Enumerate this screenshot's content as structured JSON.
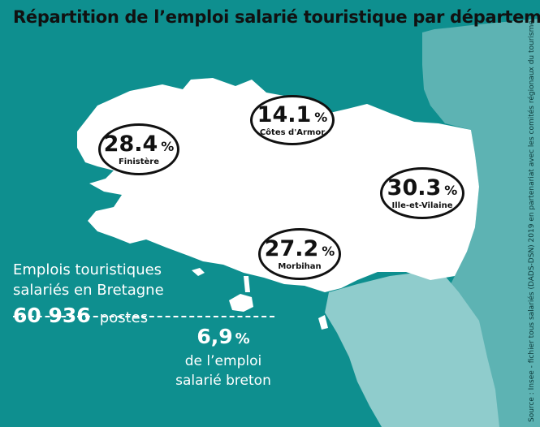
{
  "title": "Répartition de l’emploi salarié touristique par département",
  "colors": {
    "sea": "#0e8f8f",
    "neighbor_land": "#5db3b3",
    "neighbor_land_light": "#8fcccc",
    "bretagne": "#ffffff",
    "label_border": "#111111"
  },
  "regions": [
    {
      "name": "Finistère",
      "value": "28.4",
      "unit": "%"
    },
    {
      "name": "Côtes d'Armor",
      "value": "14.1",
      "unit": "%"
    },
    {
      "name": "Ille-et-Vilaine",
      "value": "30.3",
      "unit": "%"
    },
    {
      "name": "Morbihan",
      "value": "27.2",
      "unit": "%"
    }
  ],
  "stats": {
    "label": "Emplois touristiques salariés en Bretagne",
    "count": "60 936",
    "count_unit": "postes",
    "share_value": "6,9",
    "share_unit": "%",
    "share_label": "de l’emploi salarié breton"
  },
  "source": "Source : Insee - fichier tous salariés (DADS-DSN) 2019 en partenariat avec les comités régionaux du tourisme"
}
